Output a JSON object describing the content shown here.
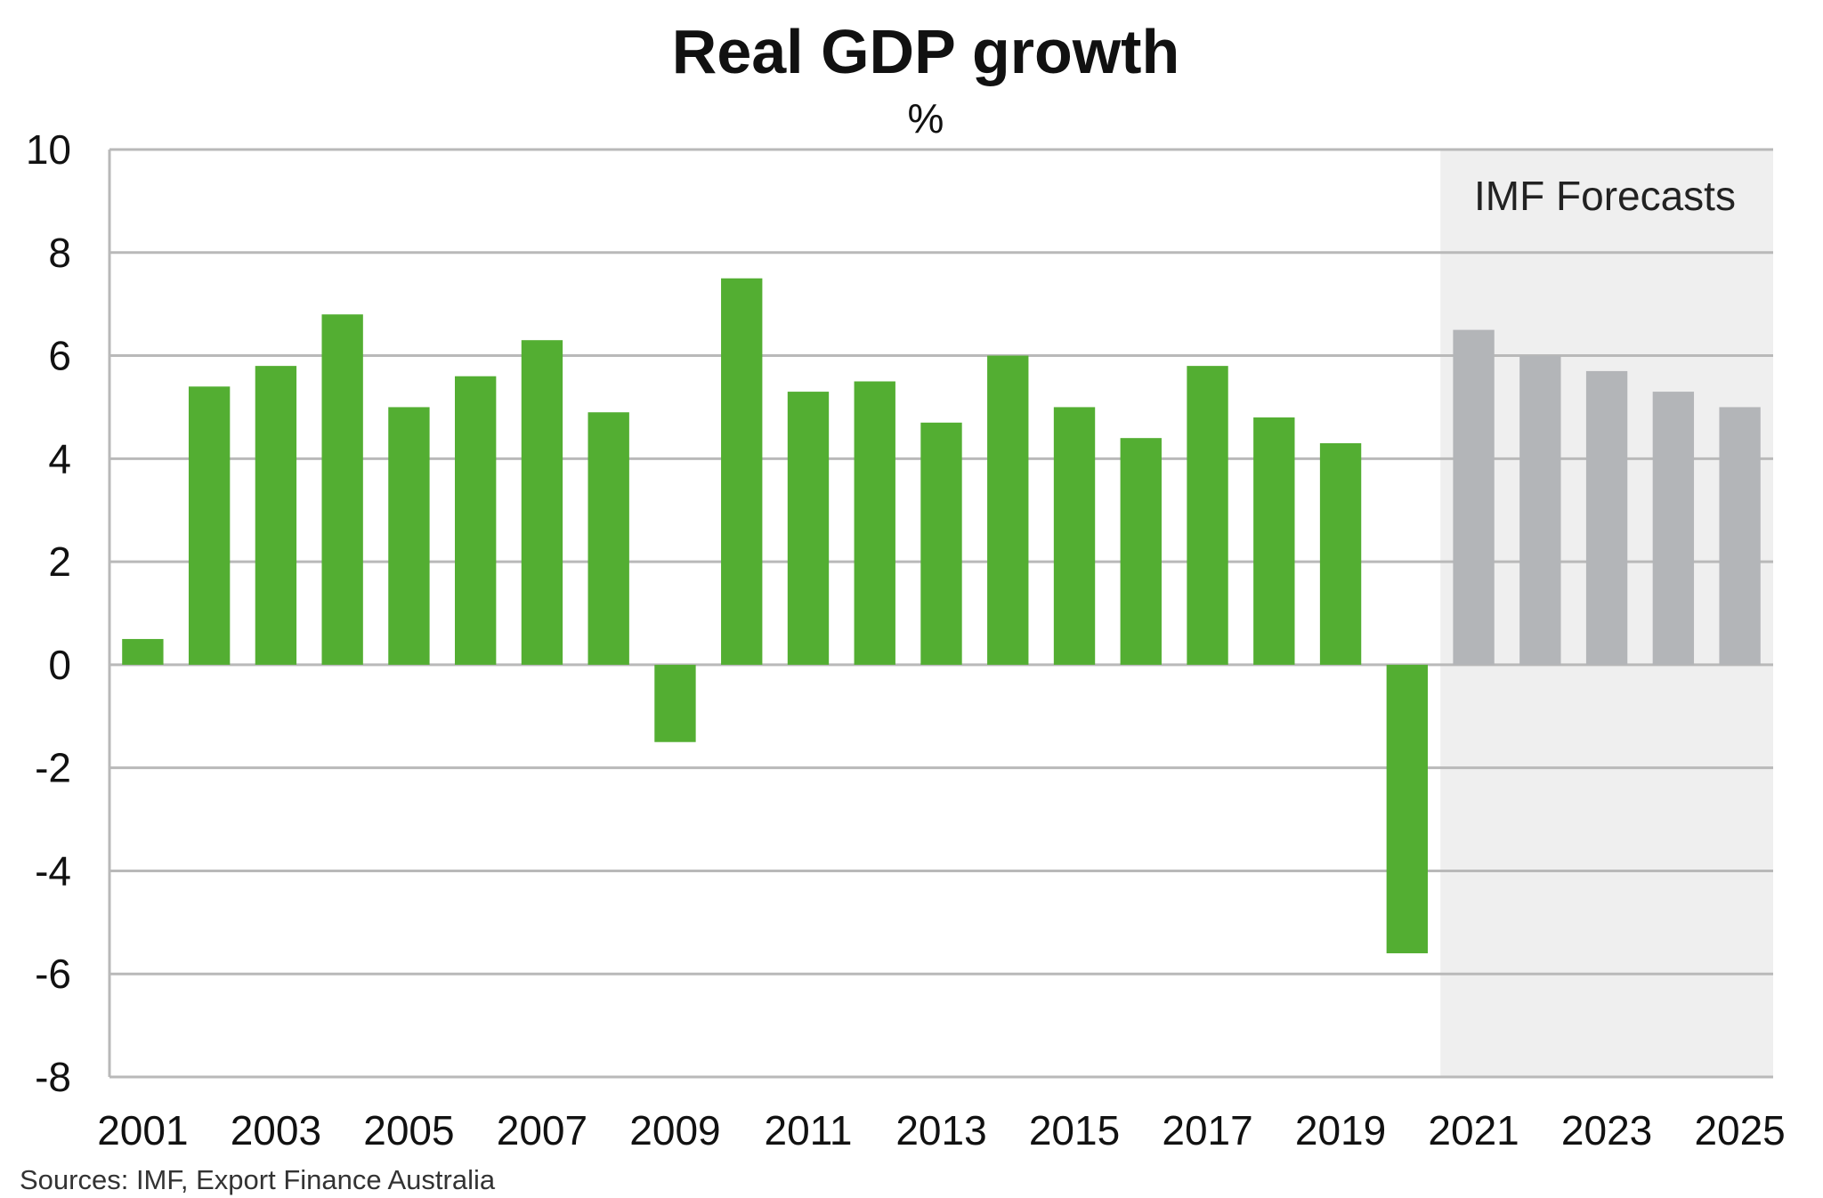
{
  "chart_data": {
    "type": "bar",
    "title": "Real GDP growth",
    "subtitle": "%",
    "xlabel": "",
    "ylabel": "",
    "ylim": [
      -8,
      10
    ],
    "yticks": [
      10,
      8,
      6,
      4,
      2,
      0,
      -2,
      -4,
      -6,
      -8
    ],
    "xtick_labels": [
      "2001",
      "2003",
      "2005",
      "2007",
      "2009",
      "2011",
      "2013",
      "2015",
      "2017",
      "2019",
      "2021",
      "2023",
      "2025"
    ],
    "categories": [
      "2001",
      "2002",
      "2003",
      "2004",
      "2005",
      "2006",
      "2007",
      "2008",
      "2009",
      "2010",
      "2011",
      "2012",
      "2013",
      "2014",
      "2015",
      "2016",
      "2017",
      "2018",
      "2019",
      "2020",
      "2021",
      "2022",
      "2023",
      "2024",
      "2025"
    ],
    "series": [
      {
        "values": [
          0.5,
          5.4,
          5.8,
          6.8,
          5.0,
          5.6,
          6.3,
          4.9,
          -1.5,
          7.5,
          5.3,
          5.5,
          4.7,
          6.0,
          5.0,
          4.4,
          5.8,
          4.8,
          4.3,
          -5.6,
          null,
          null,
          null,
          null,
          null
        ],
        "color": "#53ae32"
      },
      {
        "values": [
          null,
          null,
          null,
          null,
          null,
          null,
          null,
          null,
          null,
          null,
          null,
          null,
          null,
          null,
          null,
          null,
          null,
          null,
          null,
          null,
          6.5,
          6.0,
          5.7,
          5.3,
          5.0
        ],
        "color": "#b3b5b8"
      }
    ],
    "forecast_region": {
      "start": "2021",
      "end": "2025",
      "label": "IMF Forecasts",
      "color": "#efefef"
    },
    "grid": true,
    "gridline_color": "#b9b9b9",
    "source": "Sources: IMF, Export Finance Australia"
  }
}
